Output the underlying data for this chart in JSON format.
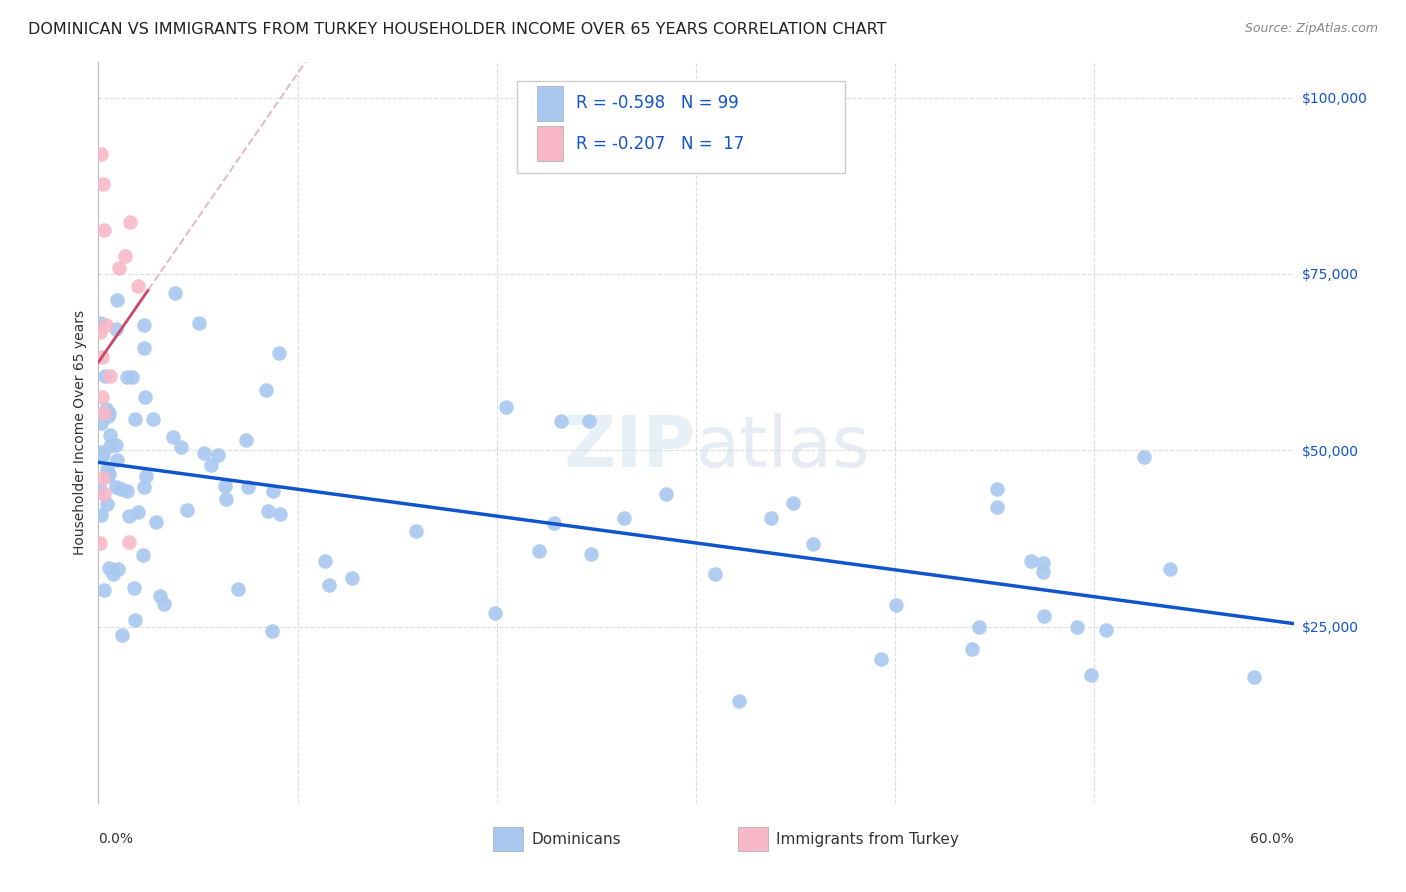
{
  "title": "DOMINICAN VS IMMIGRANTS FROM TURKEY HOUSEHOLDER INCOME OVER 65 YEARS CORRELATION CHART",
  "source": "Source: ZipAtlas.com",
  "ylabel": "Householder Income Over 65 years",
  "legend_label1": "Dominicans",
  "legend_label2": "Immigrants from Turkey",
  "R1": -0.598,
  "N1": 99,
  "R2": -0.207,
  "N2": 17,
  "blue_color": "#a8c8f0",
  "blue_line_color": "#1155cc",
  "pink_color": "#f8b8c8",
  "pink_line_color": "#cc4466",
  "pink_dash_color": "#ddaabb",
  "y_ticks": [
    0,
    25000,
    50000,
    75000,
    100000
  ],
  "y_tick_labels": [
    "",
    "$25,000",
    "$50,000",
    "$75,000",
    "$100,000"
  ],
  "xlim": [
    0.0,
    0.6
  ],
  "ylim": [
    0,
    105000
  ],
  "background_color": "#ffffff",
  "grid_color": "#dddddd",
  "title_fontsize": 11.5,
  "source_fontsize": 9,
  "axis_label_fontsize": 10,
  "legend_fontsize": 12,
  "tick_label_fontsize": 10
}
